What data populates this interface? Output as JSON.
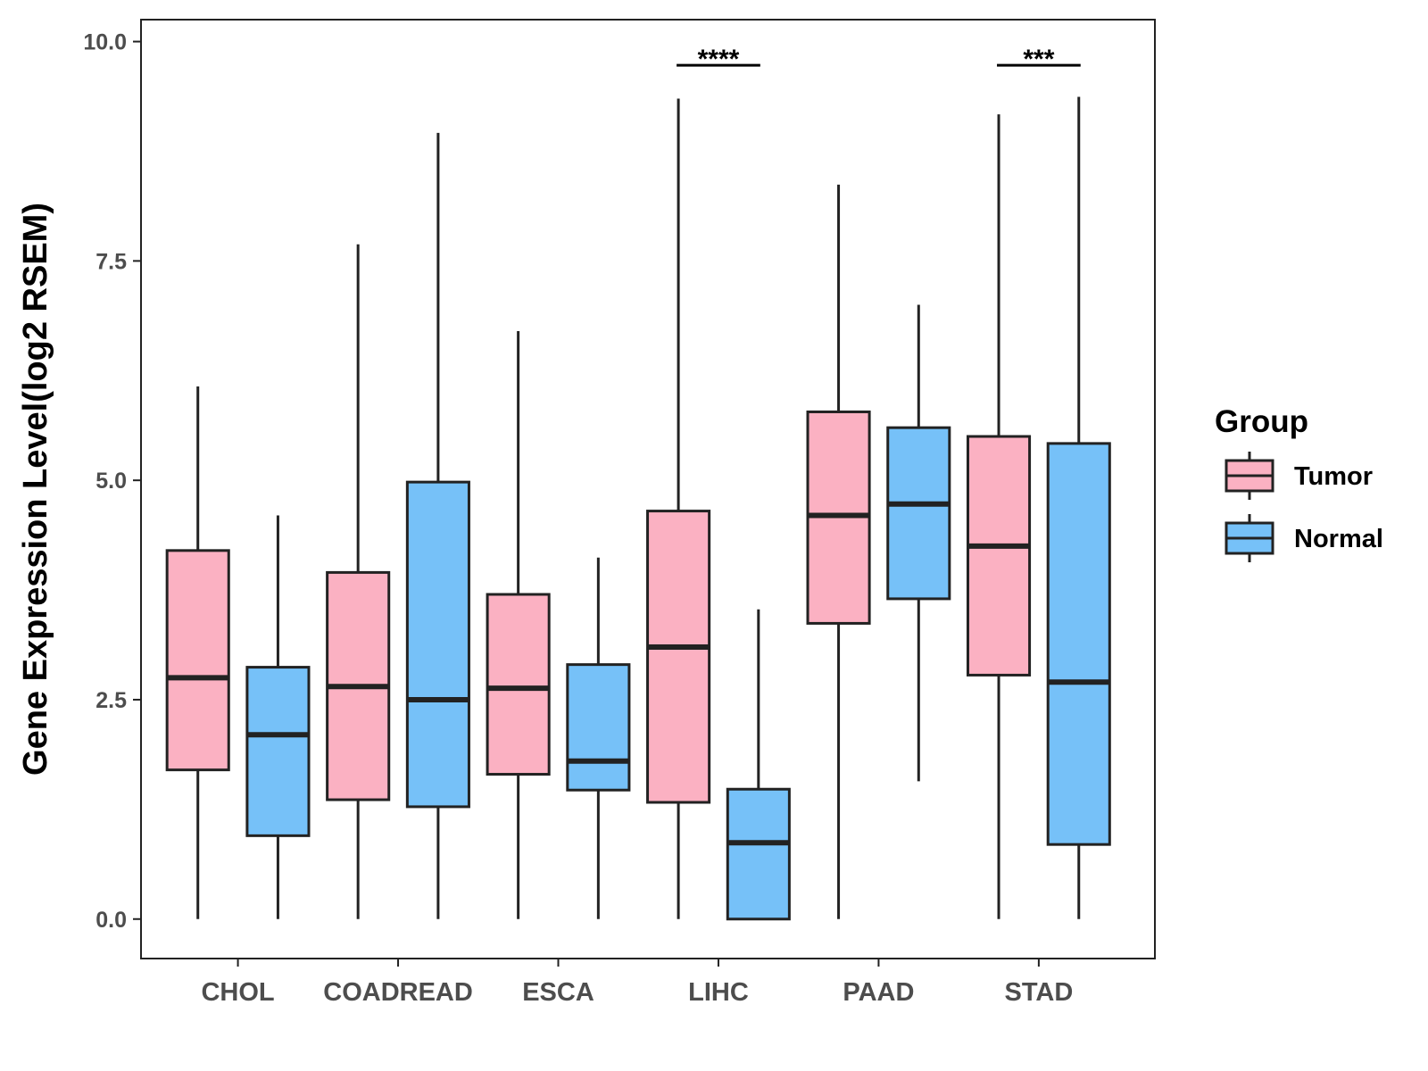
{
  "chart_data": {
    "type": "boxplot",
    "title": "",
    "xlabel": "",
    "ylabel": "Gene Expression Level(log2 RSEM)",
    "ylim": [
      -0.45,
      10.25
    ],
    "yticks": [
      0.0,
      2.5,
      5.0,
      7.5,
      10.0
    ],
    "ytick_labels": [
      "0.0",
      "2.5",
      "5.0",
      "7.5",
      "10.0"
    ],
    "categories": [
      "CHOL",
      "COADREAD",
      "ESCA",
      "LIHC",
      "PAAD",
      "STAD"
    ],
    "legend": {
      "title": "Group",
      "position": "right",
      "entries": [
        {
          "name": "Tumor",
          "color": "#FBB1C2"
        },
        {
          "name": "Normal",
          "color": "#76C1F8"
        }
      ]
    },
    "series": [
      {
        "name": "Tumor",
        "color": "#FBB1C2",
        "boxes": [
          {
            "min": 0.0,
            "q1": 1.7,
            "median": 2.75,
            "q3": 4.2,
            "max": 6.07
          },
          {
            "min": 0.0,
            "q1": 1.36,
            "median": 2.65,
            "q3": 3.95,
            "max": 7.69
          },
          {
            "min": 0.0,
            "q1": 1.65,
            "median": 2.63,
            "q3": 3.7,
            "max": 6.7
          },
          {
            "min": 0.0,
            "q1": 1.33,
            "median": 3.1,
            "q3": 4.65,
            "max": 9.35
          },
          {
            "min": 0.0,
            "q1": 3.37,
            "median": 4.6,
            "q3": 5.78,
            "max": 8.37
          },
          {
            "min": 0.0,
            "q1": 2.78,
            "median": 4.25,
            "q3": 5.5,
            "max": 9.17
          }
        ]
      },
      {
        "name": "Normal",
        "color": "#76C1F8",
        "boxes": [
          {
            "min": 0.0,
            "q1": 0.95,
            "median": 2.1,
            "q3": 2.87,
            "max": 4.6
          },
          {
            "min": 0.0,
            "q1": 1.28,
            "median": 2.5,
            "q3": 4.98,
            "max": 8.96
          },
          {
            "min": 0.0,
            "q1": 1.47,
            "median": 1.8,
            "q3": 2.9,
            "max": 4.12
          },
          {
            "min": 0.0,
            "q1": 0.0,
            "median": 0.87,
            "q3": 1.48,
            "max": 3.53
          },
          {
            "min": 1.57,
            "q1": 3.65,
            "median": 4.73,
            "q3": 5.6,
            "max": 7.0
          },
          {
            "min": 0.0,
            "q1": 0.85,
            "median": 2.7,
            "q3": 5.42,
            "max": 9.37
          }
        ]
      }
    ],
    "annotations": [
      {
        "category": "LIHC",
        "text": "****",
        "y": 9.73
      },
      {
        "category": "STAD",
        "text": "***",
        "y": 9.73
      }
    ]
  }
}
